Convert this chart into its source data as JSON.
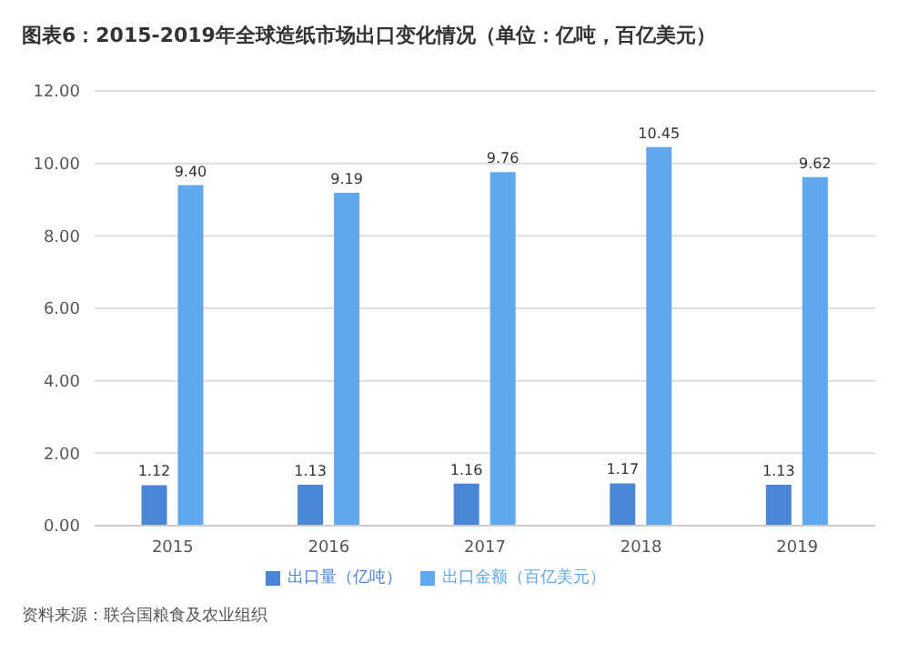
{
  "chart_data": {
    "type": "bar",
    "title": "图表6：2015-2019年全球造纸市场出口变化情况（单位：亿吨，百亿美元）",
    "categories": [
      "2015",
      "2016",
      "2017",
      "2018",
      "2019"
    ],
    "series": [
      {
        "name": "出口量（亿吨）",
        "color": "#4a86d8",
        "values": [
          1.12,
          1.13,
          1.16,
          1.17,
          1.13
        ],
        "value_labels": [
          "1.12",
          "1.13",
          "1.16",
          "1.17",
          "1.13"
        ]
      },
      {
        "name": "出口金额（百亿美元）",
        "color": "#5fa8ee",
        "values": [
          9.4,
          9.19,
          9.76,
          10.45,
          9.62
        ],
        "value_labels": [
          "9.40",
          "9.19",
          "9.76",
          "10.45",
          "9.62"
        ]
      }
    ],
    "ylim": [
      0,
      12
    ],
    "yticks": [
      {
        "value": 0,
        "label": "0.00"
      },
      {
        "value": 2,
        "label": "2.00"
      },
      {
        "value": 4,
        "label": "4.00"
      },
      {
        "value": 6,
        "label": "6.00"
      },
      {
        "value": 8,
        "label": "8.00"
      },
      {
        "value": 10,
        "label": "10.00"
      },
      {
        "value": 12,
        "label": "12.00"
      }
    ],
    "grid": "y",
    "legend": "bottom",
    "annotations": [
      "资料来源：联合国粮食及农业组织"
    ]
  }
}
